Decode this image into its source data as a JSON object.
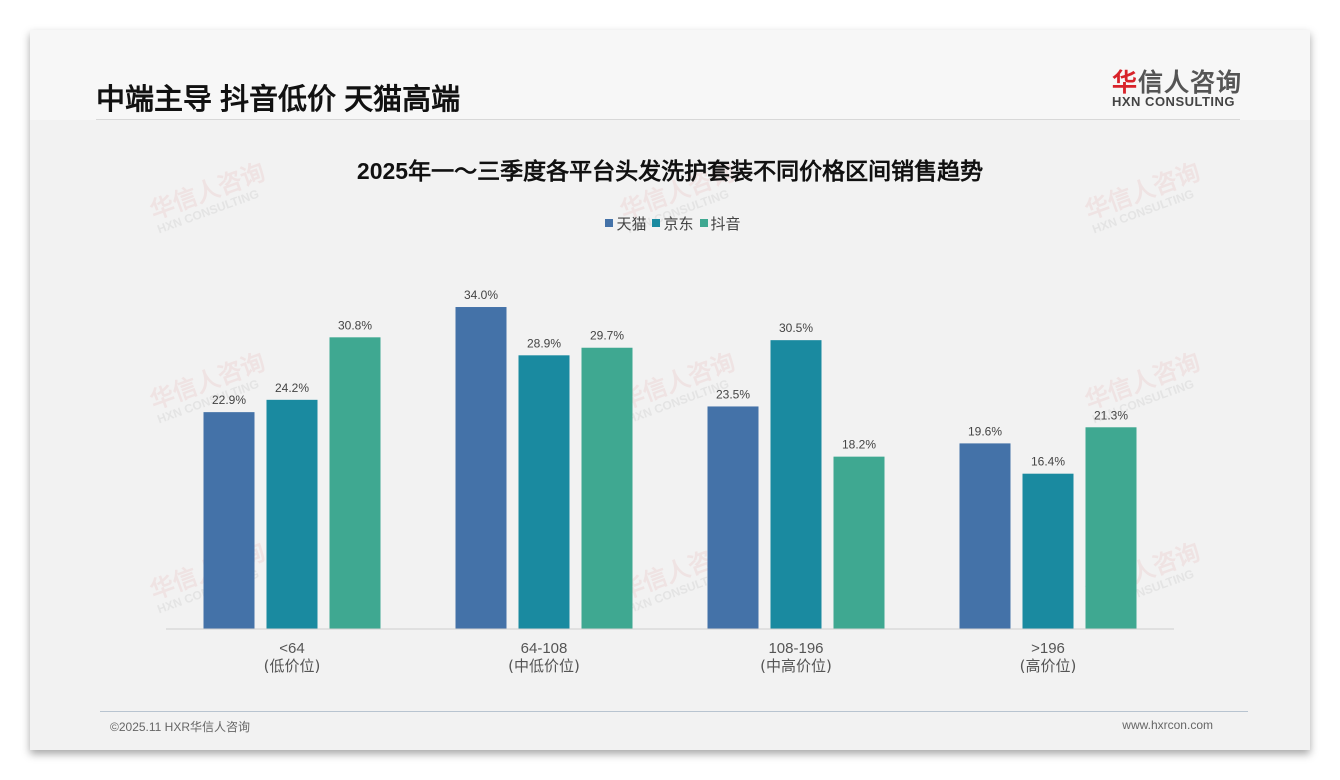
{
  "header": {
    "headline": "中端主导 抖音低价 天猫高端",
    "logo_cn_red": "华",
    "logo_cn": "信人咨询",
    "logo_en": "HXN CONSULTING"
  },
  "watermark": {
    "cn": "华信人咨询",
    "en": "HXN CONSULTING"
  },
  "footer": {
    "left": "©2025.11 HXR华信人咨询",
    "right": "www.hxrcon.com"
  },
  "chart_data": {
    "type": "bar",
    "title": "2025年一～三季度各平台头发洗护套装不同价格区间销售趋势",
    "categories": [
      "<64",
      "64-108",
      "108-196",
      ">196"
    ],
    "category_sublabels": [
      "(低价位)",
      "(中低价位)",
      "(中高价位)",
      "(高价位)"
    ],
    "series": [
      {
        "name": "天猫",
        "color": "#4472a8",
        "values": [
          22.9,
          34.0,
          23.5,
          19.6
        ]
      },
      {
        "name": "京东",
        "color": "#1a8aa0",
        "values": [
          24.2,
          28.9,
          30.5,
          16.4
        ]
      },
      {
        "name": "抖音",
        "color": "#3fa891",
        "values": [
          30.8,
          29.7,
          18.2,
          21.3
        ]
      }
    ],
    "unit": "%",
    "ylim": [
      0,
      40
    ],
    "legend": "top-center",
    "grid": false
  }
}
